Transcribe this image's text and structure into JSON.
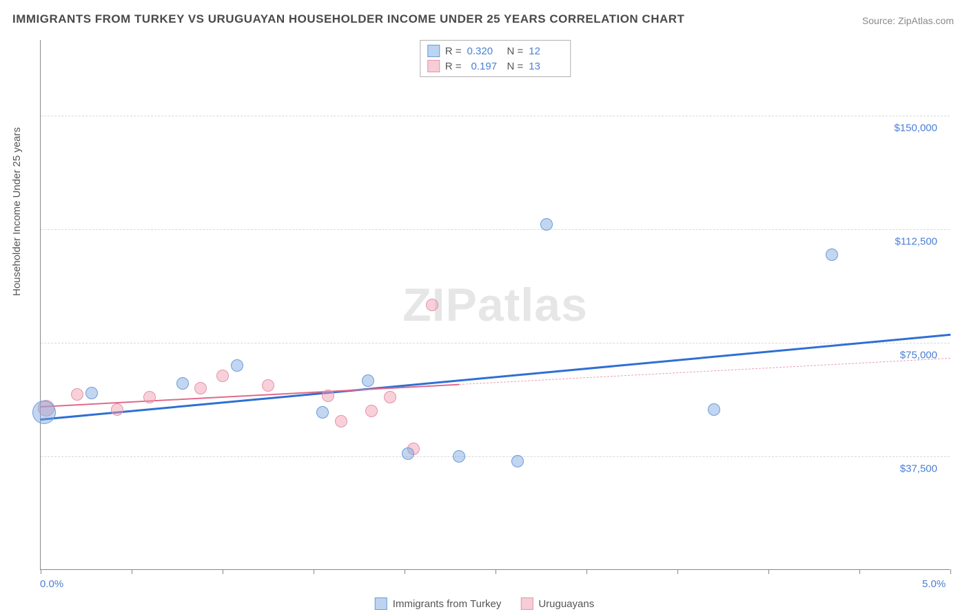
{
  "title": "IMMIGRANTS FROM TURKEY VS URUGUAYAN HOUSEHOLDER INCOME UNDER 25 YEARS CORRELATION CHART",
  "source": "Source: ZipAtlas.com",
  "watermark_a": "ZIP",
  "watermark_b": "atlas",
  "chart": {
    "type": "scatter",
    "background_color": "#ffffff",
    "grid_color": "#d8d8d8",
    "axis_color": "#888888",
    "label_color": "#555555",
    "tick_label_color": "#4a7fd4",
    "ylabel": "Householder Income Under 25 years",
    "label_fontsize": 15,
    "title_fontsize": 17,
    "xlim": [
      0.0,
      5.0
    ],
    "ylim": [
      0,
      175000
    ],
    "xticks": [
      0.0,
      0.5,
      1.0,
      1.5,
      2.0,
      2.5,
      3.0,
      3.5,
      4.0,
      4.5,
      5.0
    ],
    "xtick_labels_shown": {
      "0": "0.0%",
      "10": "5.0%"
    },
    "yticks": [
      37500,
      75000,
      112500,
      150000
    ],
    "ytick_labels": [
      "$37,500",
      "$75,000",
      "$112,500",
      "$150,000"
    ],
    "series": [
      {
        "name": "Immigrants from Turkey",
        "marker_fill": "rgba(120,165,225,0.45)",
        "marker_stroke": "#6a9bd8",
        "swatch_fill": "#bcd4f0",
        "swatch_stroke": "#6a9bd8",
        "R_label": "R =",
        "R": "0.320",
        "N_label": "N =",
        "N": "12",
        "marker_radius": 9,
        "points": [
          {
            "x": 0.02,
            "y": 52000,
            "r": 17
          },
          {
            "x": 0.28,
            "y": 58500,
            "r": 9
          },
          {
            "x": 0.78,
            "y": 61500,
            "r": 9
          },
          {
            "x": 1.08,
            "y": 67500,
            "r": 9
          },
          {
            "x": 1.55,
            "y": 52000,
            "r": 9
          },
          {
            "x": 1.8,
            "y": 62500,
            "r": 9
          },
          {
            "x": 2.02,
            "y": 38500,
            "r": 9
          },
          {
            "x": 2.3,
            "y": 37500,
            "r": 9
          },
          {
            "x": 2.62,
            "y": 36000,
            "r": 9
          },
          {
            "x": 2.78,
            "y": 114000,
            "r": 9
          },
          {
            "x": 3.7,
            "y": 53000,
            "r": 9
          },
          {
            "x": 4.35,
            "y": 104000,
            "r": 9
          }
        ],
        "trend": {
          "y_at_xmin": 50000,
          "y_at_xmax": 78000,
          "color": "#2e6fd4",
          "width": 3,
          "dash": "solid"
        }
      },
      {
        "name": "Uruguayans",
        "marker_fill": "rgba(240,150,170,0.45)",
        "marker_stroke": "#e394aa",
        "swatch_fill": "#f6cdd7",
        "swatch_stroke": "#e394aa",
        "R_label": "R =",
        "R": "0.197",
        "N_label": "N =",
        "N": "13",
        "marker_radius": 9,
        "points": [
          {
            "x": 0.03,
            "y": 53500,
            "r": 12
          },
          {
            "x": 0.2,
            "y": 58000,
            "r": 9
          },
          {
            "x": 0.42,
            "y": 53000,
            "r": 9
          },
          {
            "x": 0.6,
            "y": 57000,
            "r": 9
          },
          {
            "x": 0.88,
            "y": 60000,
            "r": 9
          },
          {
            "x": 1.0,
            "y": 64000,
            "r": 9
          },
          {
            "x": 1.25,
            "y": 61000,
            "r": 9
          },
          {
            "x": 1.58,
            "y": 57500,
            "r": 9
          },
          {
            "x": 1.65,
            "y": 49000,
            "r": 9
          },
          {
            "x": 1.82,
            "y": 52500,
            "r": 9
          },
          {
            "x": 1.92,
            "y": 57000,
            "r": 9
          },
          {
            "x": 2.05,
            "y": 40000,
            "r": 9
          },
          {
            "x": 2.15,
            "y": 87500,
            "r": 9
          }
        ],
        "trend": {
          "y_at_xmin": 54000,
          "y_at_xmax": 70000,
          "x_solid_end": 2.3,
          "color": "#e06a88",
          "width": 2,
          "dash_color": "#e8a0b2"
        }
      }
    ]
  }
}
